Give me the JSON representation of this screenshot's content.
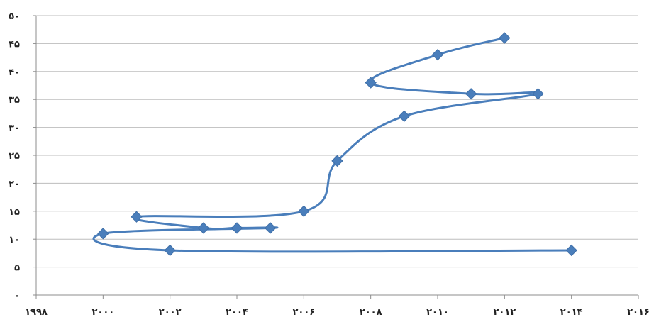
{
  "chart_data": {
    "type": "scatter",
    "title": "",
    "xlabel": "",
    "ylabel": "",
    "xlim": [
      1998,
      2016
    ],
    "ylim": [
      0,
      50
    ],
    "x_ticks": [
      1998,
      2000,
      2002,
      2004,
      2006,
      2008,
      2010,
      2012,
      2014,
      2016
    ],
    "x_tick_labels": [
      "۱۹۹۸",
      "۲۰۰۰",
      "۲۰۰۲",
      "۲۰۰۴",
      "۲۰۰۶",
      "۲۰۰۸",
      "۲۰۱۰",
      "۲۰۱۲",
      "۲۰۱۴",
      "۲۰۱۶"
    ],
    "y_ticks": [
      0,
      5,
      10,
      15,
      20,
      25,
      30,
      35,
      40,
      45,
      50
    ],
    "y_tick_labels": [
      "۰",
      "۵",
      "۱۰",
      "۱۵",
      "۲۰",
      "۲۵",
      "۳۰",
      "۳۵",
      "۴۰",
      "۴۵",
      "۵۰"
    ],
    "grid": true,
    "line_style": "smooth",
    "marker": "diamond",
    "color": "#4a7ebb",
    "series": [
      {
        "points": [
          {
            "x": 2014.0,
            "y": 8.0
          },
          {
            "x": 2002.0,
            "y": 8.0
          },
          {
            "x": 2000.0,
            "y": 11.0
          },
          {
            "x": 2005.0,
            "y": 12.0
          },
          {
            "x": 2004.0,
            "y": 12.0
          },
          {
            "x": 2003.0,
            "y": 12.0
          },
          {
            "x": 2001.0,
            "y": 14.0
          },
          {
            "x": 2006.0,
            "y": 15.0
          },
          {
            "x": 2007.0,
            "y": 24.0
          },
          {
            "x": 2009.0,
            "y": 32.0
          },
          {
            "x": 2013.0,
            "y": 36.0
          },
          {
            "x": 2011.0,
            "y": 36.0
          },
          {
            "x": 2008.0,
            "y": 38.0
          },
          {
            "x": 2010.0,
            "y": 43.0
          },
          {
            "x": 2012.0,
            "y": 46.0
          }
        ]
      }
    ]
  }
}
